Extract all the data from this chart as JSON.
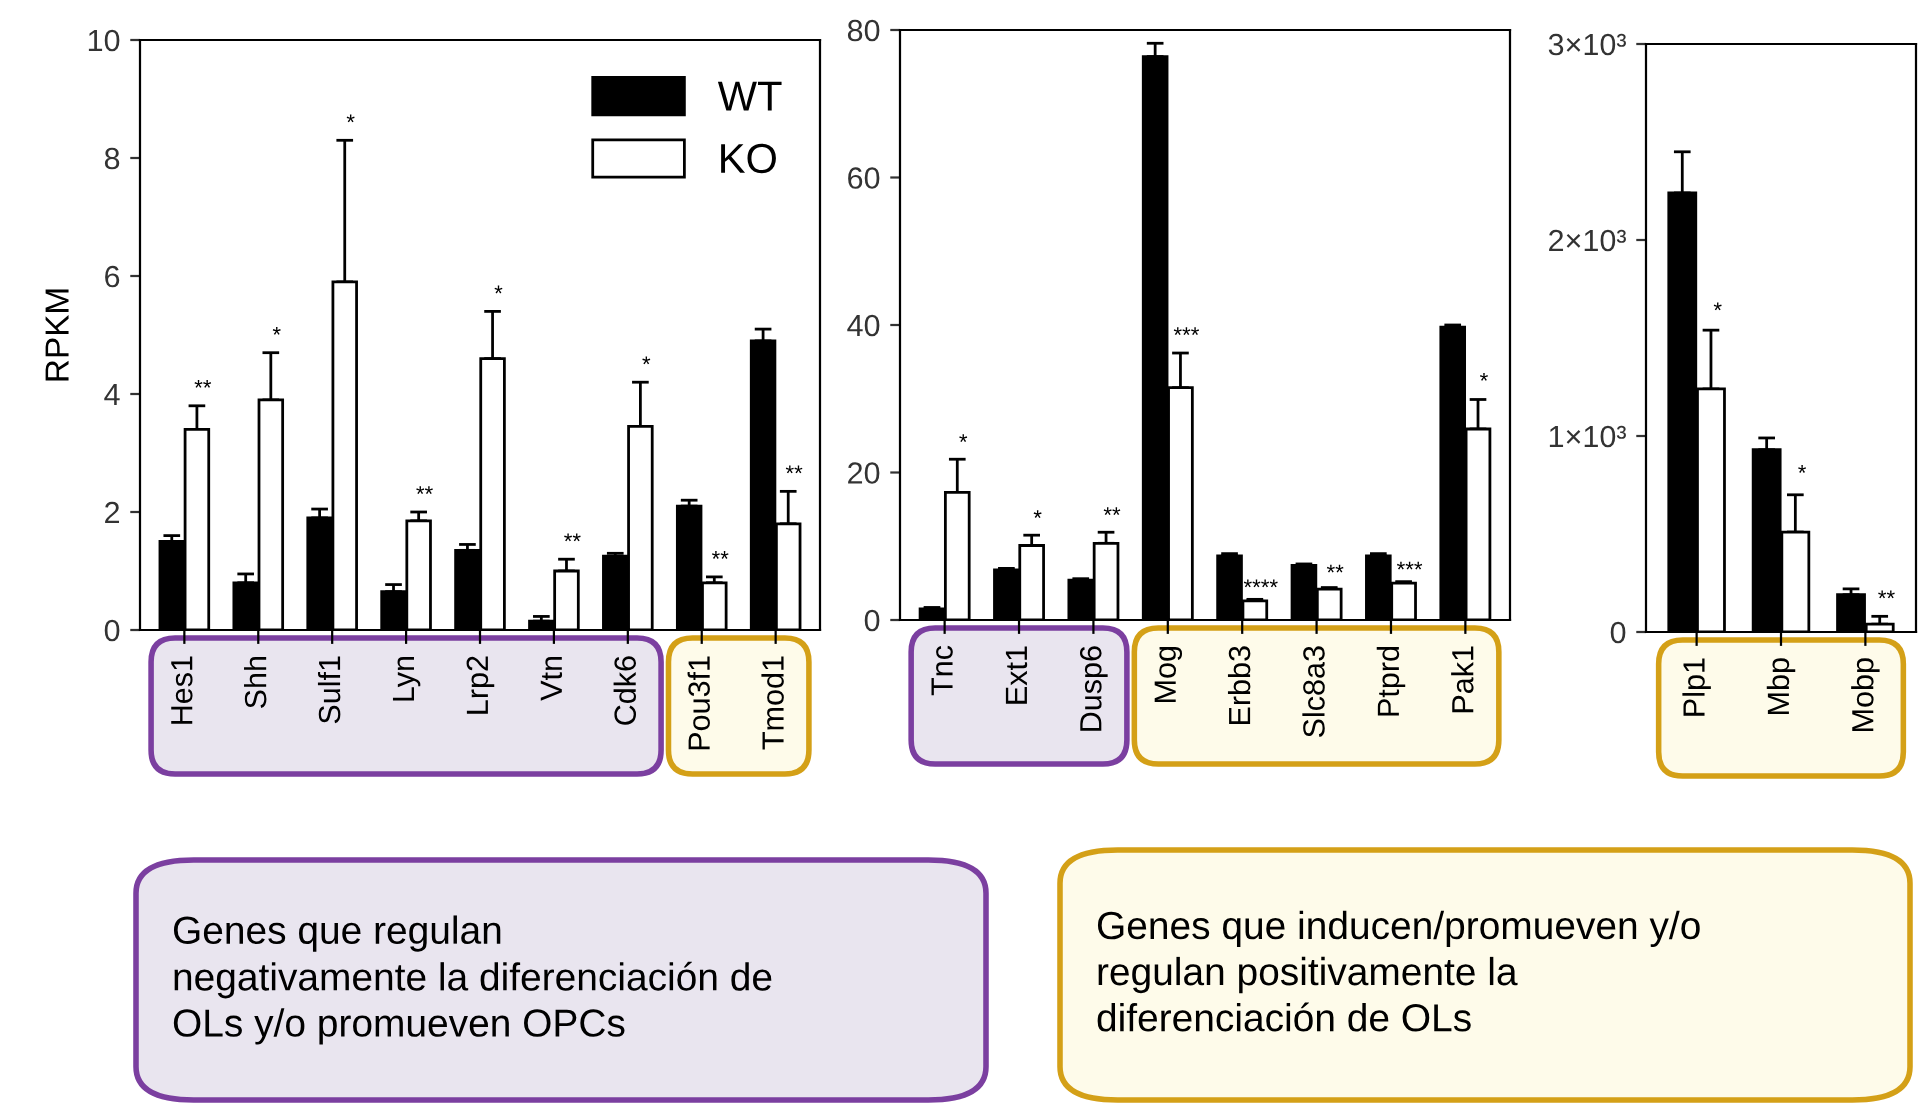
{
  "chart_data": [
    {
      "type": "bar",
      "ylabel": "RPKM",
      "categories": [
        "Hes1",
        "Shh",
        "Sulf1",
        "Lyn",
        "Lrp2",
        "Vtn",
        "Cdk6",
        "Pou3f1",
        "Tmod1"
      ],
      "ylim": [
        0,
        10
      ],
      "yticks": [
        0,
        2,
        4,
        6,
        8,
        10
      ],
      "legend": "top right",
      "series": [
        {
          "name": "WT",
          "color": "#000000",
          "values": [
            1.5,
            0.8,
            1.9,
            0.65,
            1.35,
            0.15,
            1.25,
            2.1,
            4.9
          ],
          "errors": [
            0.1,
            0.15,
            0.15,
            0.12,
            0.1,
            0.08,
            0.05,
            0.1,
            0.2
          ]
        },
        {
          "name": "KO",
          "color": "#ffffff",
          "values": [
            3.4,
            3.9,
            5.9,
            1.85,
            4.6,
            1.0,
            3.45,
            0.8,
            1.8
          ],
          "errors": [
            0.4,
            0.8,
            2.4,
            0.15,
            0.8,
            0.2,
            0.75,
            0.1,
            0.55
          ]
        }
      ],
      "annotations": [
        {
          "text": "**",
          "x": "Hes1",
          "y": 3.9
        },
        {
          "text": "*",
          "x": "Shh",
          "y": 4.8
        },
        {
          "text": "*",
          "x": "Sulf1",
          "y": 8.4
        },
        {
          "text": "**",
          "x": "Lyn",
          "y": 2.1
        },
        {
          "text": "*",
          "x": "Lrp2",
          "y": 5.5
        },
        {
          "text": "**",
          "x": "Vtn",
          "y": 1.3
        },
        {
          "text": "*",
          "x": "Cdk6",
          "y": 4.3
        },
        {
          "text": "**",
          "x": "Pou3f1",
          "y": 1.0
        },
        {
          "text": "**",
          "x": "Tmod1",
          "y": 2.45
        },
        "Genes que regulan\nnegativamente la diferenciación de\nOLs y/o promueven OPCs"
      ]
    },
    {
      "type": "bar",
      "categories": [
        "Tnc",
        "Ext1",
        "Dusp6",
        "Mog",
        "Erbb3",
        "Slc8a3",
        "Ptprd",
        "Pak1"
      ],
      "ylim": [
        0,
        80
      ],
      "yticks": [
        0,
        20,
        40,
        60,
        80
      ],
      "series": [
        {
          "color": "#000000",
          "values": [
            1.5,
            6.8,
            5.4,
            76.4,
            8.7,
            7.4,
            8.7,
            39.7
          ],
          "errors": [
            0.2,
            0.2,
            0.2,
            1.8,
            0.3,
            0.2,
            0.3,
            0.3
          ]
        },
        {
          "color": "#ffffff",
          "values": [
            17.3,
            10.1,
            10.4,
            31.5,
            2.6,
            4.2,
            5.0,
            25.9
          ],
          "errors": [
            4.5,
            1.4,
            1.5,
            4.7,
            0.2,
            0.2,
            0.2,
            4.0
          ]
        }
      ],
      "annotations": [
        {
          "text": "*",
          "x": "Tnc",
          "y": 22.5
        },
        {
          "text": "*",
          "x": "Ext1",
          "y": 12.2
        },
        {
          "text": "**",
          "x": "Dusp6",
          "y": 12.6
        },
        {
          "text": "***",
          "x": "Mog",
          "y": 37
        },
        {
          "text": "****",
          "x": "Erbb3",
          "y": 2.8
        },
        {
          "text": "**",
          "x": "Slc8a3",
          "y": 4.8
        },
        {
          "text": "***",
          "x": "Ptprd",
          "y": 5.2
        },
        {
          "text": "*",
          "x": "Pak1",
          "y": 30.8
        },
        "Genes que inducen/promueven y/o\nregulan positivamente la\ndiferenciación de OLs"
      ]
    },
    {
      "type": "bar",
      "categories": [
        "Plp1",
        "Mbp",
        "Mobp"
      ],
      "ylim": [
        0,
        3000
      ],
      "yticks": [
        0,
        {
          "value": 1000,
          "label": "1×10³"
        },
        {
          "value": 2000,
          "label": "2×10³"
        },
        {
          "value": 3000,
          "label": "3×10³"
        }
      ],
      "series": [
        {
          "color": "#000000",
          "values": [
            2240,
            930,
            190
          ],
          "errors": [
            210,
            60,
            30
          ]
        },
        {
          "color": "#ffffff",
          "values": [
            1240,
            510,
            40
          ],
          "errors": [
            300,
            190,
            40
          ]
        }
      ],
      "annotations": [
        {
          "text": "*",
          "x": "Plp1",
          "y": 1580
        },
        {
          "text": "*",
          "x": "Mbp",
          "y": 750
        },
        {
          "text": "**",
          "x": "Mobp",
          "y": 110
        }
      ]
    }
  ]
}
